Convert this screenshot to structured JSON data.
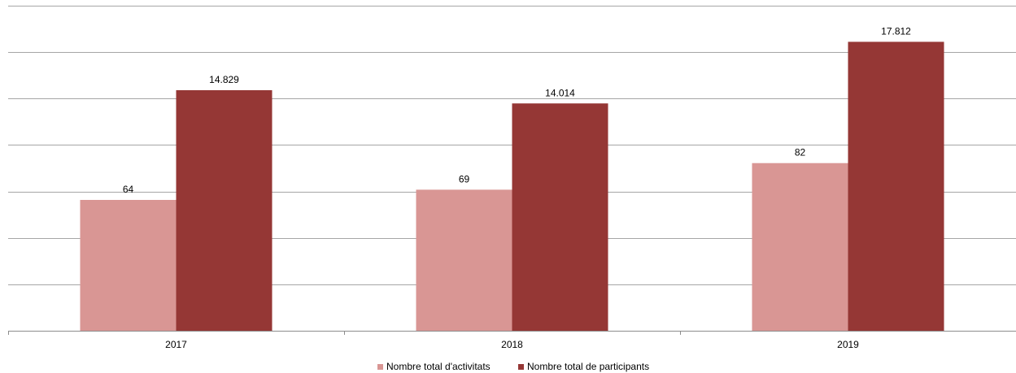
{
  "chart_data": {
    "type": "bar",
    "categories": [
      "2017",
      "2018",
      "2019"
    ],
    "series": [
      {
        "name": "Nombre total d'activitats",
        "values": [
          64,
          69,
          82
        ],
        "labels": [
          "64",
          "69",
          "82"
        ],
        "color": "#d99694"
      },
      {
        "name": "Nombre total de participants",
        "values": [
          14829,
          14014,
          17812
        ],
        "labels": [
          "14.829",
          "14.014",
          "17.812"
        ],
        "color": "#953735"
      }
    ],
    "title": "",
    "xlabel": "",
    "ylabel": "",
    "grid": true,
    "legend": "bottom",
    "gridline_color": "#a6a6a6"
  }
}
